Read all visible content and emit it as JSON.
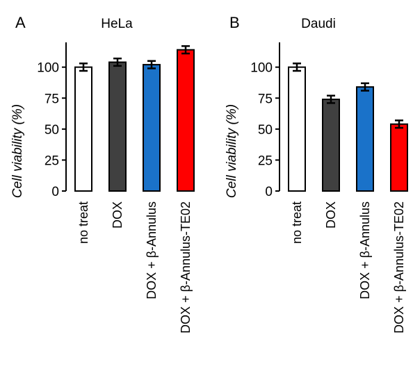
{
  "chart_data": [
    {
      "type": "bar",
      "panel": "A",
      "title": "HeLa",
      "ylabel": "Cell viability (%)",
      "xlabel": "",
      "ylim": [
        0,
        120
      ],
      "yticks": [
        0,
        25,
        50,
        75,
        100
      ],
      "categories": [
        "no treat",
        "DOX",
        "DOX + β-Annulus",
        "DOX + β-Annulus-TE02"
      ],
      "values": [
        100,
        104,
        102,
        114
      ],
      "errors": [
        3,
        3,
        3,
        3
      ],
      "colors": [
        "#ffffff",
        "#404040",
        "#1a72c9",
        "#ff0000"
      ],
      "grid": false
    },
    {
      "type": "bar",
      "panel": "B",
      "title": "Daudi",
      "ylabel": "Cell viability (%)",
      "xlabel": "",
      "ylim": [
        0,
        120
      ],
      "yticks": [
        0,
        25,
        50,
        75,
        100
      ],
      "categories": [
        "no treat",
        "DOX",
        "DOX + β-Annulus",
        "DOX + β-Annulus-TE02"
      ],
      "values": [
        100,
        74,
        84,
        54
      ],
      "errors": [
        3,
        3,
        3,
        3
      ],
      "colors": [
        "#ffffff",
        "#404040",
        "#1a72c9",
        "#ff0000"
      ],
      "grid": false
    }
  ]
}
